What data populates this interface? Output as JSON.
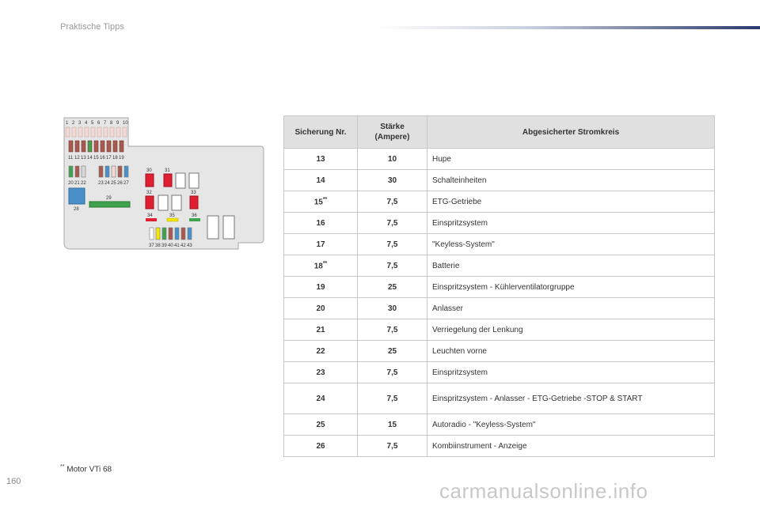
{
  "header": {
    "title": "Praktische Tipps"
  },
  "diagram": {
    "labels_top": [
      "1",
      "2",
      "3",
      "4",
      "5",
      "6",
      "7",
      "8",
      "9",
      "10"
    ],
    "labels_second": [
      "11",
      "12",
      "13",
      "14",
      "15",
      "16",
      "17",
      "18",
      "19"
    ],
    "labels_third": [
      "20",
      "21",
      "22",
      "23",
      "24",
      "25",
      "26",
      "27"
    ],
    "label_28": "28",
    "label_29": "29",
    "label_30": "30",
    "label_31": "31",
    "label_32": "32",
    "label_33": "33",
    "label_34": "34",
    "label_35": "35",
    "label_36": "36",
    "labels_bottom": [
      "37",
      "38",
      "39",
      "40",
      "41",
      "42",
      "43"
    ]
  },
  "table": {
    "headers": {
      "fuse": "Sicherung Nr.",
      "rating": "Stärke (Ampere)",
      "circuit": "Abgesicherter Stromkreis"
    },
    "rows": [
      {
        "fuse": "13",
        "mark": "",
        "rating": "10",
        "circuit": "Hupe"
      },
      {
        "fuse": "14",
        "mark": "",
        "rating": "30",
        "circuit": "Schalteinheiten"
      },
      {
        "fuse": "15",
        "mark": "**",
        "rating": "7,5",
        "circuit": "ETG-Getriebe"
      },
      {
        "fuse": "16",
        "mark": "",
        "rating": "7,5",
        "circuit": "Einspritzsystem"
      },
      {
        "fuse": "17",
        "mark": "",
        "rating": "7,5",
        "circuit": "\"Keyless-System\""
      },
      {
        "fuse": "18",
        "mark": "**",
        "rating": "7,5",
        "circuit": "Batterie"
      },
      {
        "fuse": "19",
        "mark": "",
        "rating": "25",
        "circuit": "Einspritzsystem - Kühlerventilatorgruppe"
      },
      {
        "fuse": "20",
        "mark": "",
        "rating": "30",
        "circuit": "Anlasser"
      },
      {
        "fuse": "21",
        "mark": "",
        "rating": "7,5",
        "circuit": "Verriegelung der Lenkung"
      },
      {
        "fuse": "22",
        "mark": "",
        "rating": "25",
        "circuit": "Leuchten vorne"
      },
      {
        "fuse": "23",
        "mark": "",
        "rating": "7,5",
        "circuit": "Einspritzsystem"
      },
      {
        "fuse": "24",
        "mark": "",
        "rating": "7,5",
        "circuit": "Einspritzsystem - Anlasser - ETG-Getriebe -STOP & START"
      },
      {
        "fuse": "25",
        "mark": "",
        "rating": "15",
        "circuit": "Autoradio - \"Keyless-System\""
      },
      {
        "fuse": "26",
        "mark": "",
        "rating": "7,5",
        "circuit": "Kombiinstrument - Anzeige"
      }
    ]
  },
  "footnote": {
    "mark": "**",
    "text": "Motor VTi 68"
  },
  "page_number": "160",
  "watermark": "carmanualsonline.info"
}
